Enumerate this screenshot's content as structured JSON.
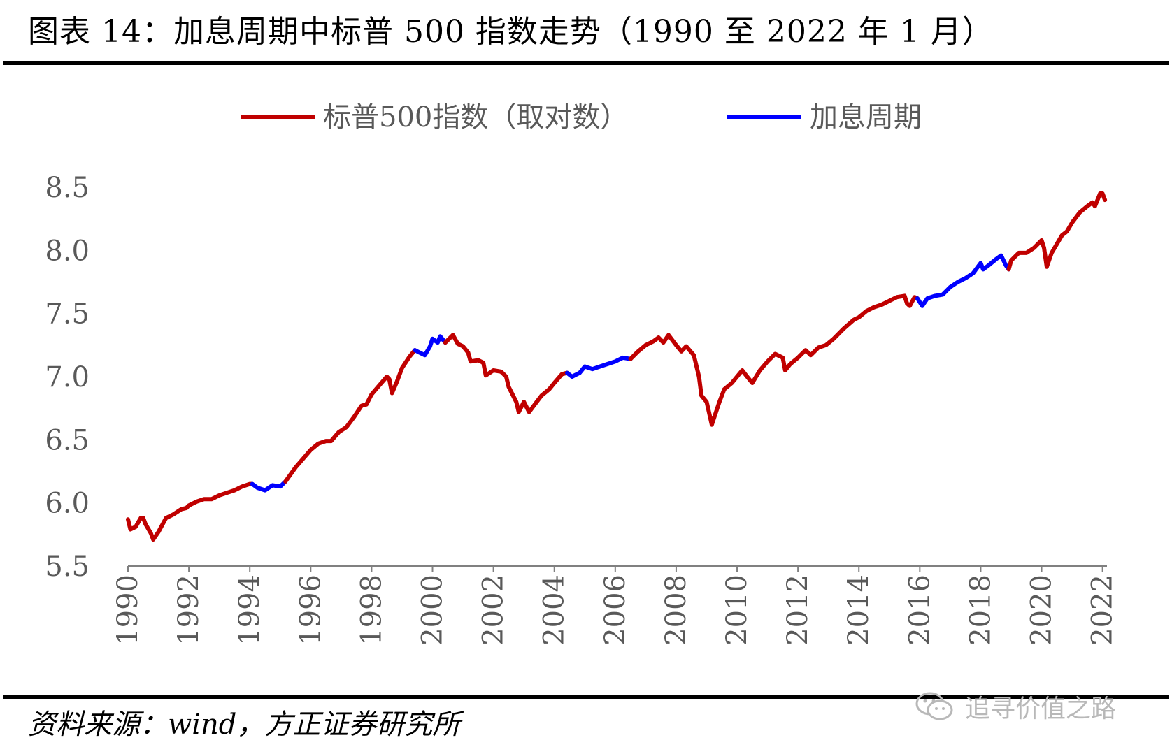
{
  "header": {
    "title": "图表 14：加息周期中标普 500 指数走势（1990 至 2022 年 1 月）"
  },
  "footer": {
    "source": "资料来源：wind，方正证券研究所",
    "watermark": "追寻价值之路"
  },
  "colors": {
    "index_line": "#C00000",
    "hike_cycle": "#0000FF",
    "axis": "#808080",
    "text": "#595959"
  },
  "chart_data": {
    "type": "line",
    "title": "",
    "xlabel": "",
    "ylabel": "",
    "ylim": [
      5.5,
      8.5
    ],
    "yticks": [
      "5.5",
      "6.0",
      "6.5",
      "7.0",
      "7.5",
      "8.0",
      "8.5"
    ],
    "xticks": [
      "1990",
      "1992",
      "1994",
      "1996",
      "1998",
      "2000",
      "2002",
      "2004",
      "2006",
      "2008",
      "2010",
      "2012",
      "2014",
      "2016",
      "2018",
      "2020",
      "2022"
    ],
    "xlim": [
      1990.0,
      2022.1
    ],
    "grid": false,
    "legend_position": "top",
    "series": [
      {
        "name": "标普500指数（取对数）",
        "color": "#C00000",
        "points": [
          [
            1990.0,
            5.87
          ],
          [
            1990.08,
            5.79
          ],
          [
            1990.25,
            5.81
          ],
          [
            1990.42,
            5.88
          ],
          [
            1990.5,
            5.88
          ],
          [
            1990.58,
            5.83
          ],
          [
            1990.75,
            5.76
          ],
          [
            1990.83,
            5.71
          ],
          [
            1991.0,
            5.77
          ],
          [
            1991.25,
            5.88
          ],
          [
            1991.5,
            5.91
          ],
          [
            1991.75,
            5.95
          ],
          [
            1991.92,
            5.96
          ],
          [
            1992.0,
            5.98
          ],
          [
            1992.25,
            6.01
          ],
          [
            1992.5,
            6.03
          ],
          [
            1992.75,
            6.03
          ],
          [
            1993.0,
            6.06
          ],
          [
            1993.25,
            6.08
          ],
          [
            1993.5,
            6.1
          ],
          [
            1993.75,
            6.13
          ],
          [
            1994.0,
            6.15
          ],
          [
            1994.08,
            6.15
          ]
        ]
      },
      {
        "name": "加息周期",
        "color": "#0000FF",
        "points": [
          [
            1994.08,
            6.15
          ],
          [
            1994.25,
            6.12
          ],
          [
            1994.5,
            6.1
          ],
          [
            1994.75,
            6.14
          ],
          [
            1995.0,
            6.13
          ],
          [
            1995.17,
            6.17
          ]
        ]
      },
      {
        "name": "",
        "color": "#C00000",
        "points": [
          [
            1995.17,
            6.17
          ],
          [
            1995.5,
            6.28
          ],
          [
            1995.75,
            6.35
          ],
          [
            1996.0,
            6.42
          ],
          [
            1996.25,
            6.47
          ],
          [
            1996.5,
            6.49
          ],
          [
            1996.67,
            6.49
          ],
          [
            1996.92,
            6.56
          ],
          [
            1997.17,
            6.6
          ],
          [
            1997.42,
            6.68
          ],
          [
            1997.67,
            6.77
          ],
          [
            1997.83,
            6.78
          ],
          [
            1998.0,
            6.86
          ],
          [
            1998.25,
            6.93
          ],
          [
            1998.5,
            7.0
          ],
          [
            1998.58,
            6.98
          ],
          [
            1998.67,
            6.87
          ],
          [
            1998.83,
            6.96
          ],
          [
            1999.0,
            7.07
          ],
          [
            1999.25,
            7.16
          ],
          [
            1999.42,
            7.21
          ]
        ]
      },
      {
        "name": "加息周期",
        "color": "#0000FF",
        "points": [
          [
            1999.42,
            7.21
          ],
          [
            1999.58,
            7.19
          ],
          [
            1999.75,
            7.17
          ],
          [
            1999.92,
            7.24
          ],
          [
            2000.0,
            7.3
          ],
          [
            2000.17,
            7.27
          ],
          [
            2000.25,
            7.32
          ],
          [
            2000.42,
            7.27
          ]
        ]
      },
      {
        "name": "",
        "color": "#C00000",
        "points": [
          [
            2000.42,
            7.27
          ],
          [
            2000.67,
            7.33
          ],
          [
            2000.83,
            7.26
          ],
          [
            2001.0,
            7.24
          ],
          [
            2001.17,
            7.19
          ],
          [
            2001.25,
            7.12
          ],
          [
            2001.5,
            7.13
          ],
          [
            2001.67,
            7.11
          ],
          [
            2001.75,
            7.01
          ],
          [
            2002.0,
            7.05
          ],
          [
            2002.25,
            7.04
          ],
          [
            2002.42,
            7.0
          ],
          [
            2002.5,
            6.92
          ],
          [
            2002.75,
            6.8
          ],
          [
            2002.83,
            6.72
          ],
          [
            2003.0,
            6.8
          ],
          [
            2003.17,
            6.72
          ],
          [
            2003.42,
            6.8
          ],
          [
            2003.58,
            6.85
          ],
          [
            2003.83,
            6.9
          ],
          [
            2004.0,
            6.95
          ],
          [
            2004.25,
            7.02
          ],
          [
            2004.42,
            7.03
          ]
        ]
      },
      {
        "name": "加息周期",
        "color": "#0000FF",
        "points": [
          [
            2004.42,
            7.03
          ],
          [
            2004.58,
            7.0
          ],
          [
            2004.83,
            7.03
          ],
          [
            2005.0,
            7.08
          ],
          [
            2005.25,
            7.06
          ],
          [
            2005.5,
            7.08
          ],
          [
            2005.75,
            7.1
          ],
          [
            2006.0,
            7.12
          ],
          [
            2006.25,
            7.15
          ],
          [
            2006.5,
            7.14
          ]
        ]
      },
      {
        "name": "",
        "color": "#C00000",
        "points": [
          [
            2006.5,
            7.14
          ],
          [
            2006.75,
            7.2
          ],
          [
            2007.0,
            7.25
          ],
          [
            2007.25,
            7.28
          ],
          [
            2007.42,
            7.31
          ],
          [
            2007.58,
            7.27
          ],
          [
            2007.75,
            7.33
          ],
          [
            2008.0,
            7.25
          ],
          [
            2008.17,
            7.2
          ],
          [
            2008.33,
            7.24
          ],
          [
            2008.58,
            7.17
          ],
          [
            2008.75,
            7.0
          ],
          [
            2008.83,
            6.85
          ],
          [
            2009.0,
            6.8
          ],
          [
            2009.17,
            6.62
          ],
          [
            2009.42,
            6.8
          ],
          [
            2009.58,
            6.9
          ],
          [
            2009.83,
            6.95
          ],
          [
            2010.0,
            7.0
          ],
          [
            2010.17,
            7.05
          ],
          [
            2010.33,
            7.0
          ],
          [
            2010.5,
            6.95
          ],
          [
            2010.75,
            7.05
          ],
          [
            2011.0,
            7.12
          ],
          [
            2011.25,
            7.18
          ],
          [
            2011.5,
            7.15
          ],
          [
            2011.58,
            7.05
          ],
          [
            2011.75,
            7.1
          ],
          [
            2012.0,
            7.15
          ],
          [
            2012.25,
            7.21
          ],
          [
            2012.42,
            7.17
          ],
          [
            2012.67,
            7.23
          ],
          [
            2012.92,
            7.25
          ],
          [
            2013.17,
            7.3
          ],
          [
            2013.5,
            7.38
          ],
          [
            2013.83,
            7.45
          ],
          [
            2014.0,
            7.47
          ],
          [
            2014.25,
            7.52
          ],
          [
            2014.5,
            7.55
          ],
          [
            2014.75,
            7.57
          ],
          [
            2015.0,
            7.6
          ],
          [
            2015.25,
            7.63
          ],
          [
            2015.5,
            7.64
          ],
          [
            2015.58,
            7.58
          ],
          [
            2015.67,
            7.56
          ],
          [
            2015.83,
            7.63
          ],
          [
            2015.92,
            7.62
          ]
        ]
      },
      {
        "name": "加息周期",
        "color": "#0000FF",
        "points": [
          [
            2015.92,
            7.62
          ],
          [
            2016.08,
            7.56
          ],
          [
            2016.25,
            7.62
          ],
          [
            2016.5,
            7.64
          ],
          [
            2016.75,
            7.65
          ],
          [
            2017.0,
            7.71
          ],
          [
            2017.25,
            7.75
          ],
          [
            2017.5,
            7.78
          ],
          [
            2017.75,
            7.82
          ],
          [
            2018.0,
            7.9
          ],
          [
            2018.08,
            7.85
          ],
          [
            2018.25,
            7.88
          ],
          [
            2018.5,
            7.93
          ],
          [
            2018.67,
            7.96
          ],
          [
            2018.83,
            7.88
          ],
          [
            2018.92,
            7.85
          ]
        ]
      },
      {
        "name": "",
        "color": "#C00000",
        "points": [
          [
            2018.92,
            7.85
          ],
          [
            2019.0,
            7.92
          ],
          [
            2019.25,
            7.98
          ],
          [
            2019.5,
            7.98
          ],
          [
            2019.75,
            8.02
          ],
          [
            2020.0,
            8.08
          ],
          [
            2020.08,
            8.02
          ],
          [
            2020.17,
            7.87
          ],
          [
            2020.33,
            7.98
          ],
          [
            2020.5,
            8.05
          ],
          [
            2020.67,
            8.12
          ],
          [
            2020.83,
            8.15
          ],
          [
            2021.0,
            8.22
          ],
          [
            2021.25,
            8.3
          ],
          [
            2021.5,
            8.35
          ],
          [
            2021.67,
            8.38
          ],
          [
            2021.75,
            8.35
          ],
          [
            2021.92,
            8.45
          ],
          [
            2022.0,
            8.45
          ],
          [
            2022.08,
            8.4
          ]
        ]
      }
    ]
  }
}
